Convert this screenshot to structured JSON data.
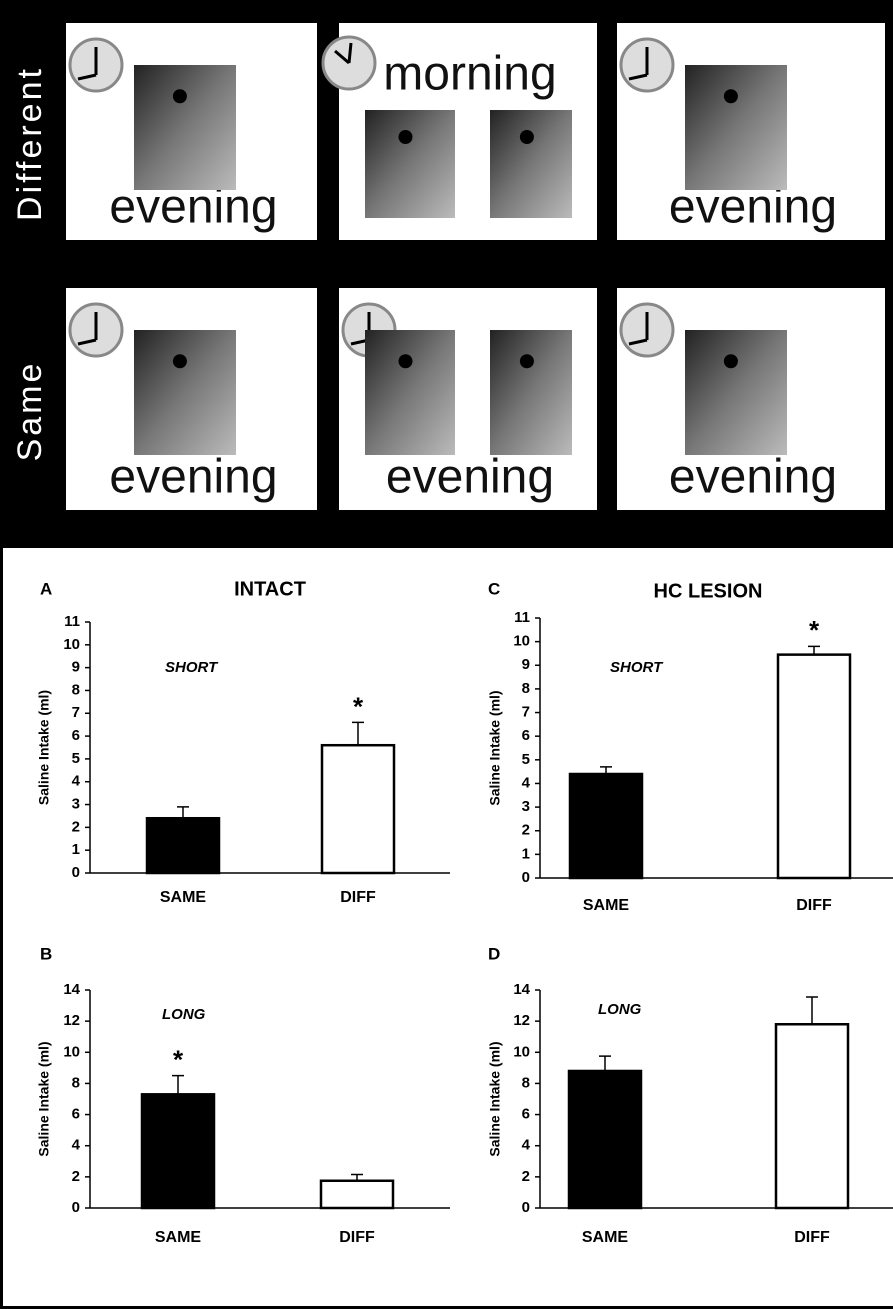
{
  "diagram": {
    "rows": [
      {
        "label": "Different",
        "panels": [
          "evening",
          "morning",
          "evening"
        ]
      },
      {
        "label": "Same",
        "panels": [
          "evening",
          "evening",
          "evening"
        ]
      }
    ]
  },
  "chart_data": [
    {
      "type": "bar",
      "panel": "A",
      "title": "INTACT",
      "annotation": "SHORT",
      "y_label": "Saline Intake (ml)",
      "categories": [
        "SAME",
        "DIFF"
      ],
      "values": [
        2.4,
        5.6
      ],
      "errors": [
        0.5,
        1.0
      ],
      "significance": [
        null,
        "*"
      ],
      "colors": [
        "#000000",
        "#ffffff"
      ],
      "ylim": [
        0,
        11
      ],
      "yticks": [
        0,
        1,
        2,
        3,
        4,
        5,
        6,
        7,
        8,
        9,
        10,
        11
      ]
    },
    {
      "type": "bar",
      "panel": "B",
      "annotation": "LONG",
      "y_label": "Saline Intake (ml)",
      "categories": [
        "SAME",
        "DIFF"
      ],
      "values": [
        7.3,
        1.75
      ],
      "errors": [
        1.2,
        0.4
      ],
      "significance": [
        "*",
        null
      ],
      "colors": [
        "#000000",
        "#ffffff"
      ],
      "ylim": [
        0,
        14
      ],
      "yticks": [
        0,
        2,
        4,
        6,
        8,
        10,
        12,
        14
      ]
    },
    {
      "type": "bar",
      "panel": "C",
      "title": "HC LESION",
      "annotation": "SHORT",
      "y_label": "Saline Intake (ml)",
      "categories": [
        "SAME",
        "DIFF"
      ],
      "values": [
        4.4,
        9.45
      ],
      "errors": [
        0.3,
        0.35
      ],
      "significance": [
        null,
        "*"
      ],
      "colors": [
        "#000000",
        "#ffffff"
      ],
      "ylim": [
        0,
        11
      ],
      "yticks": [
        0,
        1,
        2,
        3,
        4,
        5,
        6,
        7,
        8,
        9,
        10,
        11
      ]
    },
    {
      "type": "bar",
      "panel": "D",
      "annotation": "LONG",
      "y_label": "Saline Intake (ml)",
      "categories": [
        "SAME",
        "DIFF"
      ],
      "values": [
        8.8,
        11.8
      ],
      "errors": [
        0.95,
        1.75
      ],
      "significance": [
        null,
        null
      ],
      "colors": [
        "#000000",
        "#ffffff"
      ],
      "ylim": [
        0,
        14
      ],
      "yticks": [
        0,
        2,
        4,
        6,
        8,
        10,
        12,
        14
      ]
    }
  ]
}
